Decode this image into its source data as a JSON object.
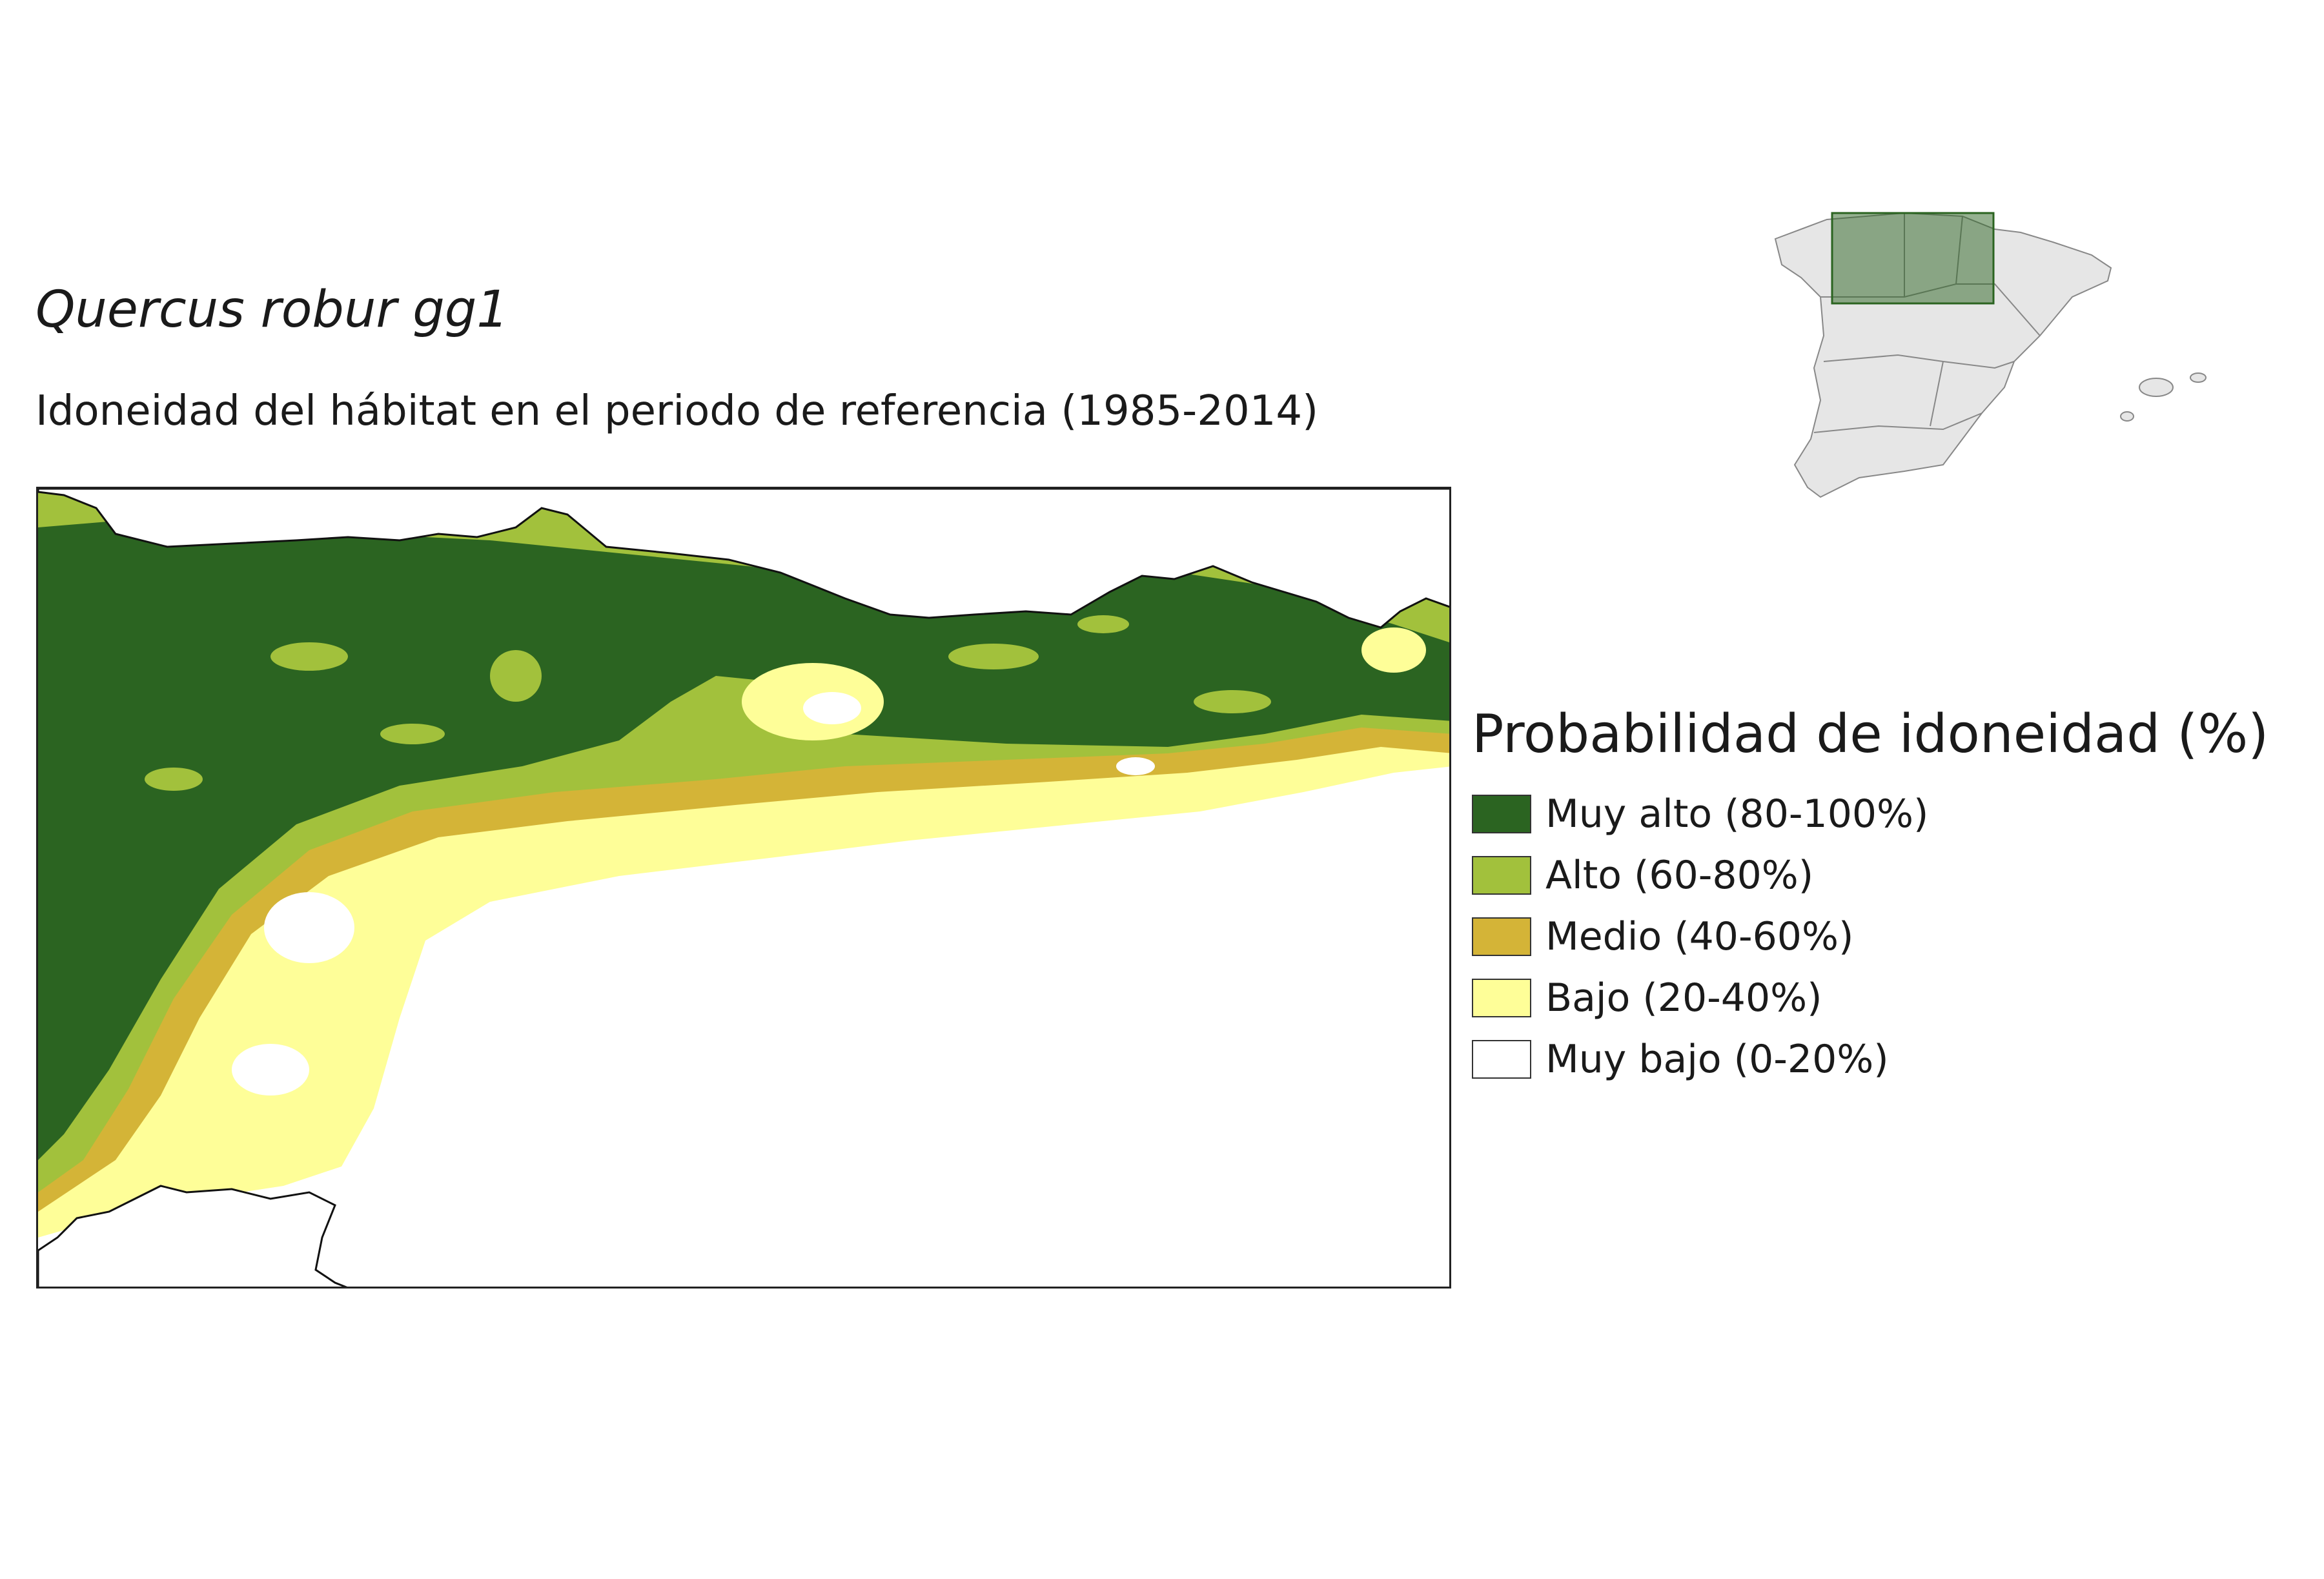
{
  "title": "Quercus robur gg1",
  "subtitle": "Idoneidad del hábitat en el periodo de referencia (1985-2014)",
  "legend": {
    "title": "Probabilidad de idoneidad (%)",
    "items": [
      {
        "label": "Muy alto (80-100%)",
        "color": "#2b6421"
      },
      {
        "label": "Alto (60-80%)",
        "color": "#a2c13c"
      },
      {
        "label": "Medio (40-60%)",
        "color": "#d4b437"
      },
      {
        "label": "Bajo (20-40%)",
        "color": "#fefe98"
      },
      {
        "label": "Muy bajo (0-20%)",
        "color": "#ffffff"
      }
    ]
  },
  "inset": {
    "highlight_color": "#2b6421",
    "land_color": "#e6e6e6"
  }
}
